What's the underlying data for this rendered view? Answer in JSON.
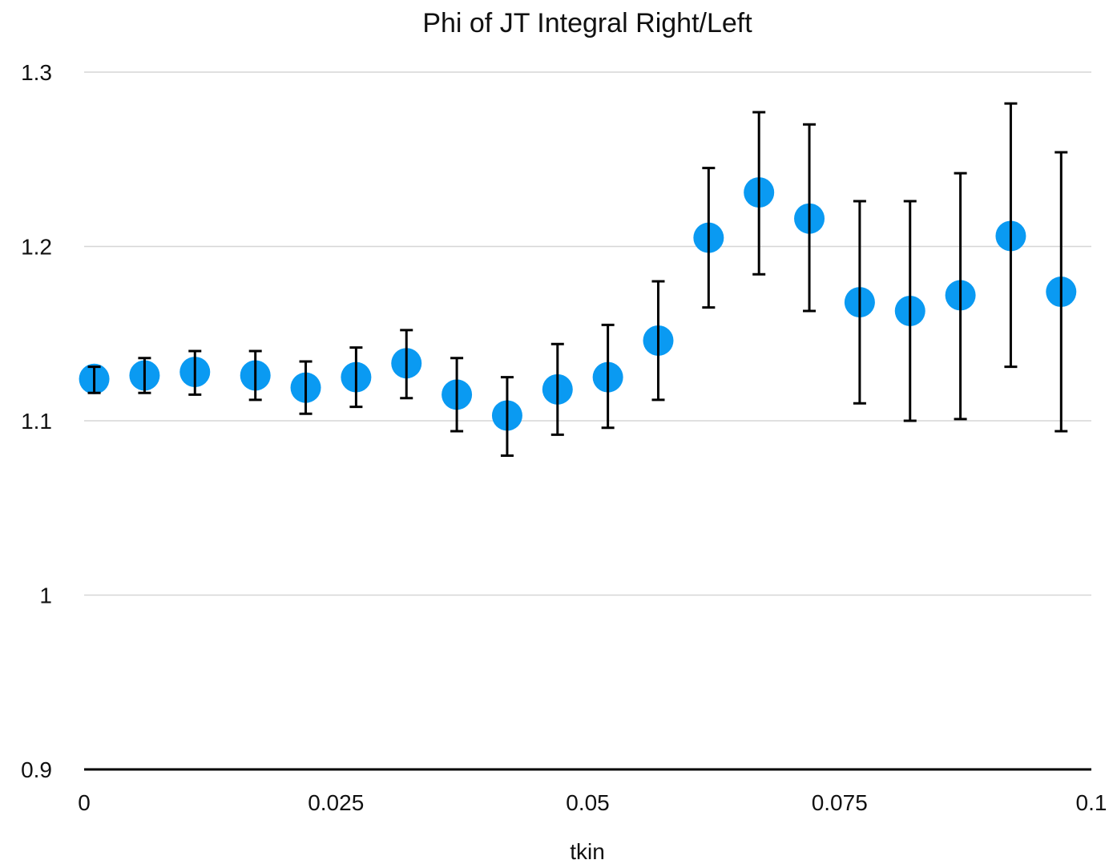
{
  "chart_data": {
    "type": "scatter",
    "title": "Phi of JT Integral Right/Left",
    "xlabel": "tkin",
    "ylabel": "",
    "xlim": [
      0,
      0.1
    ],
    "ylim": [
      0.9,
      1.3
    ],
    "x_ticks": [
      "0",
      "0.025",
      "0.05",
      "0.075",
      "0.1"
    ],
    "y_ticks": [
      "0.9",
      "1",
      "1.1",
      "1.2",
      "1.3"
    ],
    "grid": "horizontal",
    "legend": "none",
    "marker_color": "#0a9af2",
    "errorbar_color": "#000000",
    "points": [
      {
        "x": 0.001,
        "y": 1.124,
        "err_low": 1.116,
        "err_high": 1.131
      },
      {
        "x": 0.006,
        "y": 1.126,
        "err_low": 1.116,
        "err_high": 1.136
      },
      {
        "x": 0.011,
        "y": 1.128,
        "err_low": 1.115,
        "err_high": 1.14
      },
      {
        "x": 0.017,
        "y": 1.126,
        "err_low": 1.112,
        "err_high": 1.14
      },
      {
        "x": 0.022,
        "y": 1.119,
        "err_low": 1.104,
        "err_high": 1.134
      },
      {
        "x": 0.027,
        "y": 1.125,
        "err_low": 1.108,
        "err_high": 1.142
      },
      {
        "x": 0.032,
        "y": 1.133,
        "err_low": 1.113,
        "err_high": 1.152
      },
      {
        "x": 0.037,
        "y": 1.115,
        "err_low": 1.094,
        "err_high": 1.136
      },
      {
        "x": 0.042,
        "y": 1.103,
        "err_low": 1.08,
        "err_high": 1.125
      },
      {
        "x": 0.047,
        "y": 1.118,
        "err_low": 1.092,
        "err_high": 1.144
      },
      {
        "x": 0.052,
        "y": 1.125,
        "err_low": 1.096,
        "err_high": 1.155
      },
      {
        "x": 0.057,
        "y": 1.146,
        "err_low": 1.112,
        "err_high": 1.18
      },
      {
        "x": 0.062,
        "y": 1.205,
        "err_low": 1.165,
        "err_high": 1.245
      },
      {
        "x": 0.067,
        "y": 1.231,
        "err_low": 1.184,
        "err_high": 1.277
      },
      {
        "x": 0.072,
        "y": 1.216,
        "err_low": 1.163,
        "err_high": 1.27
      },
      {
        "x": 0.077,
        "y": 1.168,
        "err_low": 1.11,
        "err_high": 1.226
      },
      {
        "x": 0.082,
        "y": 1.163,
        "err_low": 1.1,
        "err_high": 1.226
      },
      {
        "x": 0.087,
        "y": 1.172,
        "err_low": 1.101,
        "err_high": 1.242
      },
      {
        "x": 0.092,
        "y": 1.206,
        "err_low": 1.131,
        "err_high": 1.282
      },
      {
        "x": 0.097,
        "y": 1.174,
        "err_low": 1.094,
        "err_high": 1.254
      }
    ]
  }
}
